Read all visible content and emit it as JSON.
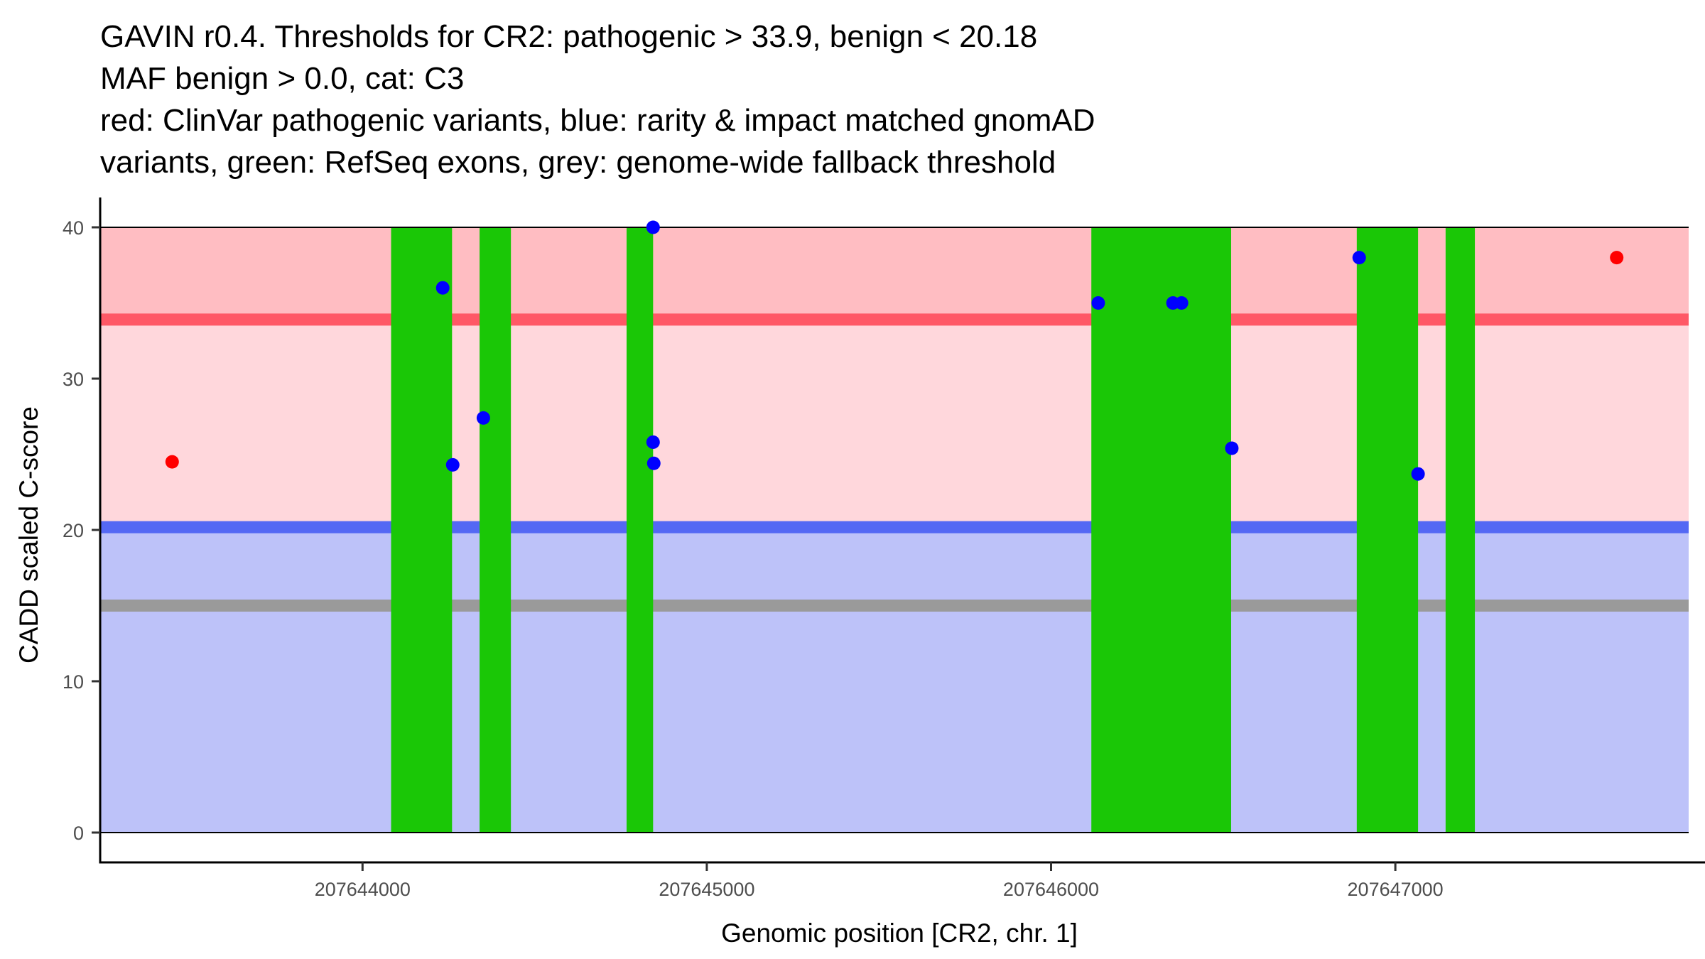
{
  "chart_data": {
    "type": "scatter",
    "title_lines": [
      "GAVIN r0.4. Thresholds for CR2: pathogenic > 33.9, benign < 20.18",
      "MAF benign > 0.0, cat: C3",
      "red: ClinVar pathogenic variants, blue: rarity & impact matched gnomAD",
      "variants, green: RefSeq exons, grey: genome-wide fallback threshold"
    ],
    "xlabel": "Genomic position [CR2, chr. 1]",
    "ylabel": "CADD scaled C-score",
    "xlim": [
      207643240,
      207647852
    ],
    "ylim": [
      -2,
      42
    ],
    "x_ticks": [
      207644000,
      207645000,
      207646000,
      207647000
    ],
    "x_tick_labels": [
      "207644000",
      "207645000",
      "207646000",
      "207647000"
    ],
    "y_ticks": [
      0,
      10,
      20,
      30,
      40
    ],
    "y_tick_labels": [
      "0",
      "10",
      "20",
      "30",
      "40"
    ],
    "grid": false,
    "thresholds": {
      "pathogenic": 33.9,
      "benign": 20.18,
      "genome_wide_fallback": 15.0
    },
    "regions": [
      {
        "name": "pathogenic-zone",
        "ymin": 33.9,
        "ymax": 40,
        "color": "#FFBDC2"
      },
      {
        "name": "intermediate-zone",
        "ymin": 20.18,
        "ymax": 33.9,
        "color": "#FFD7DC"
      },
      {
        "name": "benign-zone",
        "ymin": 0,
        "ymax": 20.18,
        "color": "#BDC2F9"
      }
    ],
    "threshold_lines": [
      {
        "name": "pathogenic-threshold",
        "y": 33.9,
        "color": "#FF5866"
      },
      {
        "name": "benign-threshold",
        "y": 20.18,
        "color": "#5468F4"
      },
      {
        "name": "fallback-threshold",
        "y": 15.0,
        "color": "#9A9A9A"
      }
    ],
    "exons": {
      "name": "RefSeq exons",
      "color": "#1AC706",
      "ranges": [
        [
          207644083,
          207644260
        ],
        [
          207644340,
          207644431
        ],
        [
          207644767,
          207644844
        ],
        [
          207646117,
          207646523
        ],
        [
          207646888,
          207647066
        ],
        [
          207647146,
          207647231
        ]
      ]
    },
    "series": [
      {
        "name": "ClinVar pathogenic variants",
        "color": "#FF0000",
        "points": [
          {
            "x": 207643447,
            "y": 24.5
          },
          {
            "x": 207647643,
            "y": 38.0
          }
        ]
      },
      {
        "name": "rarity & impact matched gnomAD variants",
        "color": "#0000FF",
        "points": [
          {
            "x": 207644233,
            "y": 36.0
          },
          {
            "x": 207644262,
            "y": 24.3
          },
          {
            "x": 207644351,
            "y": 27.4
          },
          {
            "x": 207644844,
            "y": 40.0
          },
          {
            "x": 207644844,
            "y": 25.8
          },
          {
            "x": 207644846,
            "y": 24.4
          },
          {
            "x": 207646137,
            "y": 35.0
          },
          {
            "x": 207646354,
            "y": 35.0
          },
          {
            "x": 207646379,
            "y": 35.0
          },
          {
            "x": 207646525,
            "y": 25.4
          },
          {
            "x": 207646895,
            "y": 38.0
          },
          {
            "x": 207647066,
            "y": 23.7
          }
        ]
      }
    ]
  }
}
